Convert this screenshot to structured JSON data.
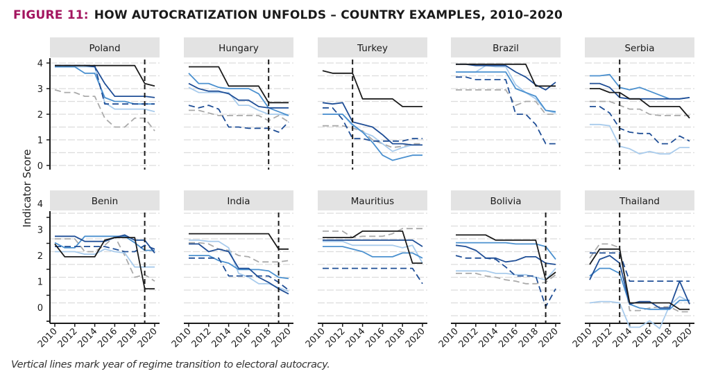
{
  "figure": {
    "number_label": "FIGURE 11:",
    "title": "HOW AUTOCRATIZATION UNFOLDS – COUNTRY EXAMPLES, 2010–2020",
    "caption": "Vertical lines mark year of regime transition to electoral autocracy.",
    "title_color": "#a3155f"
  },
  "chart_data": {
    "type": "line",
    "title": "HOW AUTOCRATIZATION UNFOLDS – COUNTRY EXAMPLES, 2010–2020",
    "xlabel": "",
    "ylabel": "Indicator Score",
    "xlim": [
      2010,
      2020
    ],
    "ylim": [
      0,
      4
    ],
    "x_ticks": [
      2010,
      2012,
      2014,
      2016,
      2018,
      2020
    ],
    "y_ticks": [
      0,
      1,
      2,
      3,
      4
    ],
    "grid": true,
    "legend": "none",
    "series_styles": [
      {
        "id": "s1",
        "color": "#1a1a1a",
        "dash": "solid"
      },
      {
        "id": "s2",
        "color": "#1f4e96",
        "dash": "solid"
      },
      {
        "id": "s3",
        "color": "#4a90cf",
        "dash": "solid"
      },
      {
        "id": "s4",
        "color": "#a8cbec",
        "dash": "solid"
      },
      {
        "id": "s5",
        "color": "#aaaaaa",
        "dash": "dashed"
      },
      {
        "id": "s6",
        "color": "#1f4e96",
        "dash": "dashed"
      }
    ],
    "x": [
      2010,
      2011,
      2012,
      2013,
      2014,
      2015,
      2016,
      2017,
      2018,
      2019,
      2020
    ],
    "panels": [
      {
        "country": "Poland",
        "transition_year": 2019.0,
        "series": {
          "s1": [
            3.9,
            3.9,
            3.9,
            3.9,
            3.9,
            3.9,
            3.9,
            3.9,
            3.9,
            3.2,
            3.1
          ],
          "s2": [
            3.9,
            3.9,
            3.9,
            3.9,
            3.85,
            3.2,
            2.7,
            2.7,
            2.7,
            2.7,
            2.65
          ],
          "s3": [
            3.85,
            3.85,
            3.85,
            3.6,
            3.6,
            2.65,
            2.5,
            2.5,
            2.4,
            2.4,
            2.4
          ],
          "s4": [
            3.85,
            3.85,
            3.85,
            3.85,
            3.85,
            2.45,
            2.2,
            2.2,
            2.2,
            2.2,
            2.1
          ],
          "s5": [
            2.95,
            2.85,
            2.85,
            2.7,
            2.7,
            1.85,
            1.5,
            1.5,
            1.85,
            1.85,
            1.35
          ],
          "s6": [
            3.9,
            3.9,
            3.9,
            3.9,
            3.9,
            2.4,
            2.4,
            2.4,
            2.4,
            2.4,
            2.4
          ]
        }
      },
      {
        "country": "Hungary",
        "transition_year": 2018.0,
        "series": {
          "s1": [
            3.85,
            3.85,
            3.85,
            3.85,
            3.1,
            3.1,
            3.1,
            3.1,
            2.45,
            2.45,
            2.45
          ],
          "s2": [
            3.2,
            3.0,
            2.9,
            2.9,
            2.8,
            2.55,
            2.55,
            2.3,
            2.25,
            2.25,
            2.25
          ],
          "s3": [
            3.6,
            3.2,
            3.2,
            3.05,
            3.0,
            3.0,
            3.0,
            2.8,
            2.25,
            2.1,
            1.95
          ],
          "s4": [
            3.05,
            2.85,
            2.85,
            2.85,
            2.85,
            2.35,
            2.35,
            2.15,
            2.0,
            2.0,
            1.95
          ],
          "s5": [
            2.15,
            2.15,
            2.05,
            1.95,
            1.95,
            1.95,
            1.95,
            1.95,
            1.75,
            1.95,
            1.7
          ],
          "s6": [
            2.35,
            2.25,
            2.35,
            2.2,
            1.5,
            1.5,
            1.45,
            1.45,
            1.45,
            1.3,
            1.7
          ]
        }
      },
      {
        "country": "Turkey",
        "transition_year": 2013.0,
        "series": {
          "s1": [
            3.7,
            3.6,
            3.6,
            3.6,
            2.6,
            2.6,
            2.6,
            2.6,
            2.3,
            2.3,
            2.3
          ],
          "s2": [
            2.45,
            2.4,
            2.45,
            1.7,
            1.6,
            1.5,
            1.2,
            0.85,
            0.85,
            0.8,
            0.8
          ],
          "s3": [
            2.0,
            2.0,
            2.0,
            1.6,
            1.3,
            0.9,
            0.4,
            0.2,
            0.3,
            0.4,
            0.4
          ],
          "s4": [
            2.0,
            2.0,
            2.0,
            1.55,
            1.3,
            1.15,
            0.85,
            0.55,
            0.7,
            0.8,
            0.8
          ],
          "s5": [
            1.55,
            1.55,
            1.55,
            1.45,
            1.35,
            1.0,
            0.85,
            0.7,
            0.75,
            0.85,
            0.85
          ],
          "s6": [
            2.25,
            2.25,
            1.8,
            1.05,
            1.05,
            0.95,
            0.95,
            0.95,
            0.95,
            1.05,
            1.05
          ]
        }
      },
      {
        "country": "Brazil",
        "transition_year": null,
        "series": {
          "s1": [
            3.95,
            3.95,
            3.95,
            3.95,
            3.95,
            3.95,
            3.95,
            3.95,
            3.1,
            3.1,
            3.1
          ],
          "s2": [
            3.95,
            3.95,
            3.9,
            3.9,
            3.9,
            3.9,
            3.65,
            3.45,
            3.15,
            2.95,
            3.25
          ],
          "s3": [
            3.65,
            3.65,
            3.65,
            3.65,
            3.65,
            3.65,
            3.0,
            2.85,
            2.7,
            2.15,
            2.1
          ],
          "s4": [
            3.65,
            3.65,
            3.65,
            3.9,
            3.85,
            3.85,
            3.15,
            2.85,
            2.6,
            2.15,
            2.05
          ],
          "s5": [
            2.95,
            2.95,
            2.95,
            2.95,
            2.95,
            2.95,
            2.35,
            2.5,
            2.5,
            2.0,
            2.0
          ],
          "s6": [
            3.45,
            3.45,
            3.35,
            3.35,
            3.35,
            3.35,
            2.0,
            2.0,
            1.6,
            0.85,
            0.85
          ]
        }
      },
      {
        "country": "Serbia",
        "transition_year": 2013.0,
        "series": {
          "s1": [
            3.0,
            3.0,
            2.85,
            2.85,
            2.6,
            2.6,
            2.3,
            2.3,
            2.3,
            2.3,
            1.85
          ],
          "s2": [
            3.2,
            3.2,
            3.05,
            2.65,
            2.6,
            2.6,
            2.6,
            2.6,
            2.6,
            2.6,
            2.65
          ],
          "s3": [
            3.5,
            3.5,
            3.55,
            3.05,
            2.95,
            3.05,
            2.9,
            2.75,
            2.6,
            2.6,
            2.65
          ],
          "s4": [
            1.6,
            1.6,
            1.55,
            0.75,
            0.65,
            0.45,
            0.55,
            0.45,
            0.45,
            0.7,
            0.7
          ],
          "s5": [
            2.5,
            2.5,
            2.5,
            2.35,
            2.2,
            2.2,
            2.0,
            1.95,
            1.95,
            1.95,
            1.95
          ],
          "s6": [
            2.3,
            2.3,
            2.05,
            1.45,
            1.3,
            1.25,
            1.25,
            0.85,
            0.85,
            1.15,
            0.95
          ]
        }
      },
      {
        "country": "Benin",
        "transition_year": 2019.0,
        "series": {
          "s1": [
            2.8,
            2.3,
            2.3,
            2.3,
            2.3,
            2.95,
            3.05,
            3.05,
            3.05,
            1.05,
            1.05
          ],
          "s2": [
            3.1,
            3.1,
            3.1,
            2.9,
            2.9,
            2.9,
            3.05,
            3.15,
            2.95,
            2.95,
            2.45
          ],
          "s3": [
            2.85,
            2.65,
            2.65,
            3.1,
            3.1,
            3.1,
            3.1,
            3.1,
            2.85,
            2.55,
            2.55
          ],
          "s4": [
            2.5,
            2.5,
            2.5,
            2.4,
            2.4,
            2.6,
            2.5,
            2.45,
            1.9,
            1.9,
            1.9
          ],
          "s5": [
            3.0,
            3.0,
            3.0,
            2.5,
            2.5,
            2.75,
            3.1,
            2.35,
            1.5,
            1.6,
            1.35
          ],
          "s6": [
            2.7,
            2.7,
            2.7,
            2.7,
            2.7,
            2.7,
            2.6,
            2.5,
            2.5,
            2.75,
            2.6
          ]
        }
      },
      {
        "country": "India",
        "transition_year": 2019.0,
        "series": {
          "s1": [
            3.2,
            3.2,
            3.2,
            3.2,
            3.2,
            3.2,
            3.2,
            3.2,
            3.2,
            2.6,
            2.6
          ],
          "s2": [
            2.8,
            2.8,
            2.5,
            2.6,
            2.5,
            1.85,
            1.85,
            1.5,
            1.3,
            1.05,
            0.85
          ],
          "s3": [
            2.35,
            2.35,
            2.35,
            2.15,
            2.05,
            1.8,
            1.8,
            1.8,
            1.75,
            1.5,
            1.45
          ],
          "s4": [
            2.95,
            2.95,
            2.9,
            2.9,
            2.65,
            1.65,
            1.5,
            1.25,
            1.25,
            1.1,
            0.95
          ],
          "s5": [
            2.85,
            2.85,
            2.8,
            2.6,
            2.55,
            2.35,
            2.3,
            2.1,
            2.1,
            2.1,
            2.15
          ],
          "s6": [
            2.25,
            2.25,
            2.25,
            2.25,
            1.55,
            1.55,
            1.55,
            1.55,
            1.55,
            1.3,
            1.0
          ]
        }
      },
      {
        "country": "Mauritius",
        "transition_year": null,
        "series": {
          "s1": [
            3.05,
            3.05,
            3.05,
            3.05,
            3.3,
            3.3,
            3.3,
            3.3,
            3.3,
            2.05,
            2.05
          ],
          "s2": [
            2.95,
            2.95,
            2.95,
            2.95,
            2.95,
            2.95,
            2.95,
            2.95,
            2.95,
            2.95,
            2.7
          ],
          "s3": [
            2.7,
            2.7,
            2.7,
            2.6,
            2.5,
            2.3,
            2.3,
            2.3,
            2.45,
            2.45,
            2.25
          ],
          "s4": [
            2.9,
            2.9,
            2.9,
            2.75,
            2.75,
            2.75,
            2.75,
            2.75,
            2.65,
            2.75,
            2.05
          ],
          "s5": [
            3.3,
            3.3,
            3.3,
            3.05,
            3.1,
            3.1,
            3.1,
            3.2,
            3.4,
            3.4,
            3.4
          ],
          "s6": [
            1.85,
            1.85,
            1.85,
            1.85,
            1.85,
            1.85,
            1.85,
            1.85,
            1.85,
            1.85,
            1.25
          ]
        }
      },
      {
        "country": "Bolivia",
        "transition_year": 2019.0,
        "series": {
          "s1": [
            3.15,
            3.15,
            3.15,
            3.15,
            2.95,
            2.95,
            2.95,
            2.95,
            2.95,
            1.4,
            1.7
          ],
          "s2": [
            2.75,
            2.7,
            2.55,
            2.25,
            2.25,
            2.1,
            2.15,
            2.3,
            2.3,
            2.05,
            2.0
          ],
          "s3": [
            2.85,
            2.85,
            2.85,
            2.85,
            2.85,
            2.85,
            2.8,
            2.8,
            2.8,
            2.7,
            2.2
          ],
          "s4": [
            1.75,
            1.75,
            1.75,
            1.75,
            1.65,
            1.65,
            1.6,
            1.6,
            1.5,
            1.4,
            1.85
          ],
          "s5": [
            1.65,
            1.65,
            1.65,
            1.55,
            1.5,
            1.4,
            1.35,
            1.25,
            1.25,
            1.3,
            1.6
          ],
          "s6": [
            2.35,
            2.25,
            2.25,
            2.25,
            2.2,
            1.9,
            1.55,
            1.55,
            1.55,
            0.35,
            1.05
          ]
        }
      },
      {
        "country": "Thailand",
        "transition_year": 2013.0,
        "series": {
          "s1": [
            2.0,
            2.6,
            2.6,
            2.6,
            0.5,
            0.5,
            0.5,
            0.5,
            0.5,
            0.25,
            0.25
          ],
          "s2": [
            1.4,
            2.2,
            2.35,
            2.05,
            0.45,
            0.55,
            0.55,
            0.3,
            0.3,
            1.35,
            0.45
          ],
          "s3": [
            1.55,
            1.85,
            1.85,
            1.65,
            0.45,
            0.3,
            0.25,
            0.25,
            0.25,
            0.6,
            0.6
          ],
          "s4": [
            0.5,
            0.55,
            0.55,
            0.5,
            -0.45,
            -0.45,
            -0.2,
            -0.5,
            0.4,
            0.75,
            0.55
          ],
          "s5": [
            2.25,
            2.8,
            2.8,
            2.65,
            0.2,
            0.2,
            0.3,
            0.35,
            0.35,
            0.15,
            0.15
          ],
          "s6": [
            2.45,
            2.45,
            2.45,
            2.45,
            1.35,
            1.35,
            1.35,
            1.35,
            1.35,
            1.35,
            1.35
          ]
        }
      }
    ]
  }
}
